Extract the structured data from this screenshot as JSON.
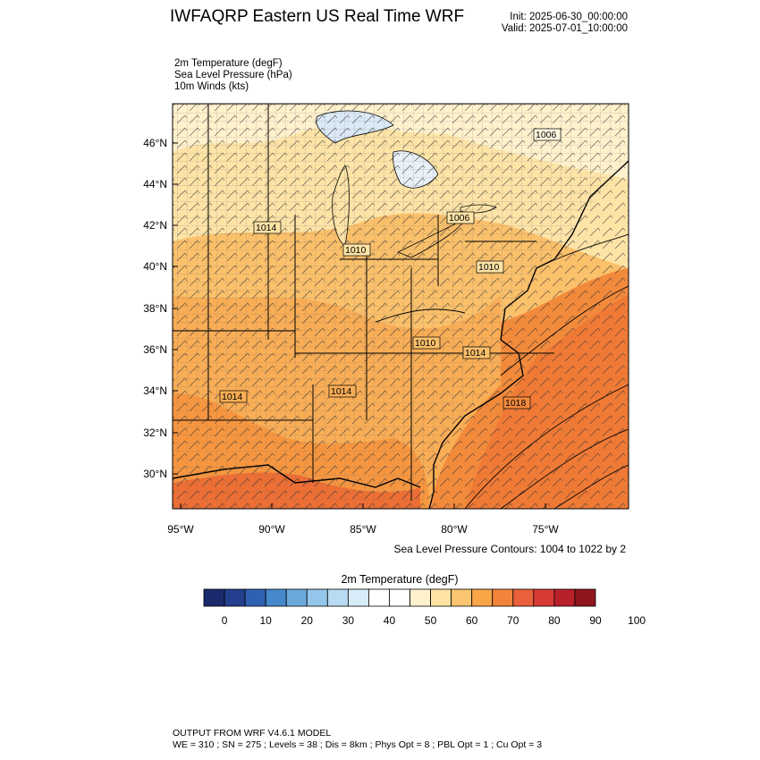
{
  "title": "IWFAQRP Eastern US Real Time WRF",
  "init_label": "Init: 2025-06-30_00:00:00",
  "valid_label": "Valid: 2025-07-01_10:00:00",
  "fields": [
    "2m Temperature   (degF)",
    "Sea Level Pressure   (hPa)",
    "10m Winds   (kts)"
  ],
  "lat_labels": [
    "46°N",
    "44°N",
    "42°N",
    "40°N",
    "38°N",
    "36°N",
    "34°N",
    "32°N",
    "30°N"
  ],
  "lon_labels": [
    "95°W",
    "90°W",
    "85°W",
    "80°W",
    "75°W"
  ],
  "pressure_labels": [
    "1006",
    "1006",
    "1014",
    "1010",
    "1010",
    "1010",
    "1014",
    "1014",
    "1014",
    "1018"
  ],
  "contour_note": "Sea Level Pressure Contours: 1004 to 1022 by 2",
  "colorbar": {
    "title": "2m Temperature  (degF)",
    "colors": [
      "#1a2a6c",
      "#233f8e",
      "#2f61b0",
      "#4588cb",
      "#6aa9dc",
      "#93c6ea",
      "#b8daf2",
      "#d8ebf8",
      "#ffffff",
      "#ffffff",
      "#fff1cc",
      "#fde2a2",
      "#fbc470",
      "#f8a548",
      "#f2843a",
      "#e9603a",
      "#d83a35",
      "#b8202a",
      "#8f151e"
    ],
    "tick_labels": [
      "0",
      "10",
      "20",
      "30",
      "40",
      "50",
      "60",
      "70",
      "80",
      "90",
      "100"
    ]
  },
  "footer_line1": "OUTPUT FROM WRF V4.6.1 MODEL",
  "footer_line2": "WE = 310 ; SN = 275 ; Levels = 38 ; Dis = 8km ; Phys Opt = 8 ; PBL Opt = 1 ; Cu Opt = 3"
}
